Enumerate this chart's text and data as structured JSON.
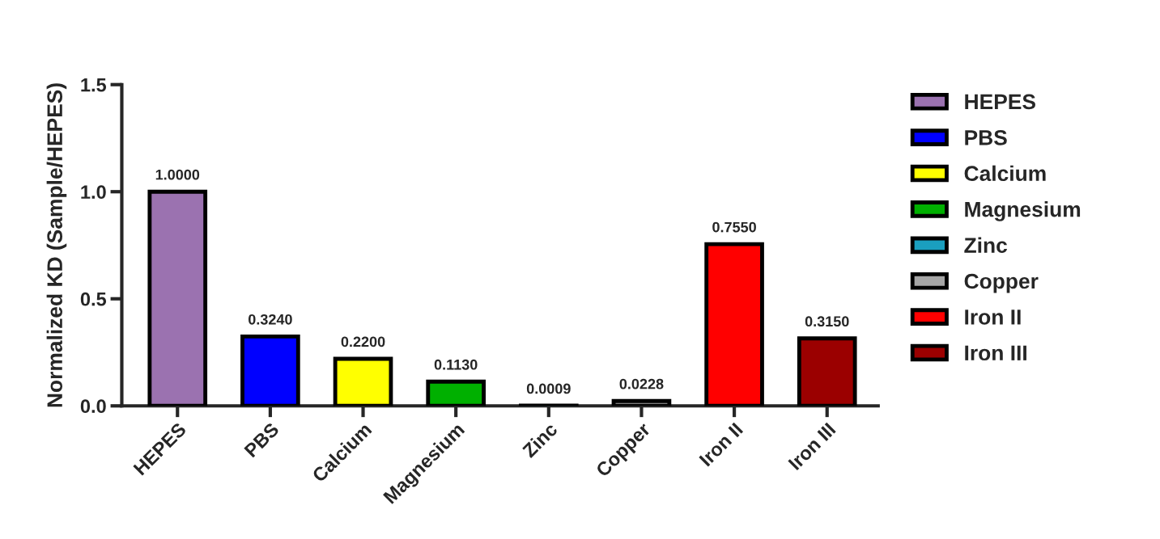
{
  "chart_data": {
    "type": "bar",
    "ylabel": "Normalized KD (Sample/HEPES)",
    "categories": [
      "HEPES",
      "PBS",
      "Calcium",
      "Magnesium",
      "Zinc",
      "Copper",
      "Iron II",
      "Iron III"
    ],
    "series": [
      {
        "name": "HEPES",
        "color": "#9b72b0",
        "values": [
          1.0,
          null,
          null,
          null,
          null,
          null,
          null,
          null
        ],
        "value_labels": [
          "1.0000",
          null,
          null,
          null,
          null,
          null,
          null,
          null
        ]
      },
      {
        "name": "PBS",
        "color": "#0000ff",
        "values": [
          null,
          0.324,
          null,
          null,
          null,
          null,
          null,
          null
        ],
        "value_labels": [
          null,
          "0.3240",
          null,
          null,
          null,
          null,
          null,
          null
        ]
      },
      {
        "name": "Calcium",
        "color": "#ffff00",
        "values": [
          null,
          null,
          0.22,
          null,
          null,
          null,
          null,
          null
        ],
        "value_labels": [
          null,
          null,
          "0.2200",
          null,
          null,
          null,
          null,
          null
        ]
      },
      {
        "name": "Magnesium",
        "color": "#00b000",
        "values": [
          null,
          null,
          null,
          0.113,
          null,
          null,
          null,
          null
        ],
        "value_labels": [
          null,
          null,
          null,
          "0.1130",
          null,
          null,
          null,
          null
        ]
      },
      {
        "name": "Zinc",
        "color": "#1a9fbf",
        "values": [
          null,
          null,
          null,
          null,
          0.0009,
          null,
          null,
          null
        ],
        "value_labels": [
          null,
          null,
          null,
          null,
          "0.0009",
          null,
          null,
          null
        ]
      },
      {
        "name": "Copper",
        "color": "#a6a6a6",
        "values": [
          null,
          null,
          null,
          null,
          null,
          0.0228,
          null,
          null
        ],
        "value_labels": [
          null,
          null,
          null,
          null,
          null,
          "0.0228",
          null,
          null
        ]
      },
      {
        "name": "Iron II",
        "color": "#ff0000",
        "values": [
          null,
          null,
          null,
          null,
          null,
          null,
          0.755,
          null
        ],
        "value_labels": [
          null,
          null,
          null,
          null,
          null,
          null,
          "0.7550",
          null
        ]
      },
      {
        "name": "Iron III",
        "color": "#9b0000",
        "values": [
          null,
          null,
          null,
          null,
          null,
          null,
          null,
          0.315
        ],
        "value_labels": [
          null,
          null,
          null,
          null,
          null,
          null,
          null,
          "0.3150"
        ]
      }
    ],
    "ylim": [
      0,
      1.5
    ],
    "yticks": [
      {
        "value": 0,
        "label": "0.0"
      },
      {
        "value": 0.5,
        "label": "0.5"
      },
      {
        "value": 1.0,
        "label": "1.0"
      },
      {
        "value": 1.5,
        "label": "1.5"
      }
    ],
    "legend": "right",
    "grid": false
  }
}
